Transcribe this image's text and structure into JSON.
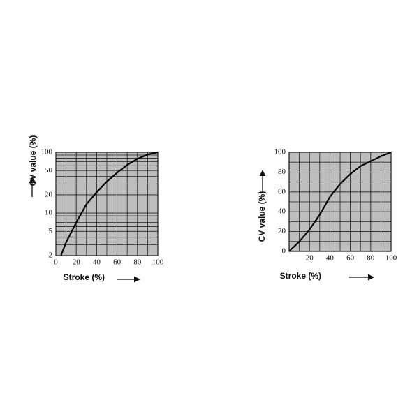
{
  "chart_data": [
    {
      "type": "line",
      "ylabel": "CV value (%)",
      "xlabel": "Stroke (%)",
      "x": [
        5,
        10,
        20,
        30,
        40,
        50,
        60,
        70,
        80,
        90,
        100
      ],
      "values": [
        2,
        3.3,
        7,
        14,
        22,
        33,
        46,
        62,
        78,
        92,
        100
      ],
      "color": "#000000",
      "log_y": true,
      "xlim": [
        0,
        100
      ],
      "xticks": [
        0,
        20,
        40,
        60,
        80,
        100
      ],
      "minor_xticks": [
        10,
        30,
        50,
        70,
        90
      ],
      "ylim": [
        2,
        100
      ],
      "yticks": [
        2,
        5,
        10,
        20,
        50,
        100
      ],
      "minor_yticks": [
        3,
        4,
        6,
        7,
        8,
        9,
        30,
        40,
        60,
        70,
        80,
        90
      ],
      "grid": true
    },
    {
      "type": "line",
      "ylabel": "CV value (%)",
      "xlabel": "Stroke (%)",
      "x": [
        0,
        10,
        20,
        30,
        40,
        50,
        60,
        70,
        80,
        90,
        100
      ],
      "values": [
        0,
        10,
        22,
        37,
        55,
        68,
        78,
        86,
        91,
        96,
        100
      ],
      "color": "#000000",
      "log_y": false,
      "xlim": [
        0,
        100
      ],
      "xticks": [
        20,
        40,
        60,
        80,
        100
      ],
      "minor_xticks": [
        10,
        30,
        50,
        70,
        90
      ],
      "ylim": [
        0,
        100
      ],
      "yticks": [
        0,
        20,
        40,
        60,
        80,
        100
      ],
      "minor_yticks": [
        10,
        30,
        50,
        70,
        90
      ],
      "grid": true
    }
  ]
}
